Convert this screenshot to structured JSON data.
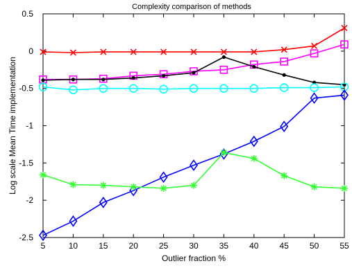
{
  "chart_data": {
    "type": "line",
    "title": "Complexity comparison of methods",
    "xlabel": "Outlier fraction %",
    "ylabel": "Log scale Mean Time implementation",
    "xlim": [
      5,
      55
    ],
    "ylim": [
      -2.5,
      0.5
    ],
    "x_ticks": [
      "5",
      "10",
      "15",
      "20",
      "25",
      "30",
      "35",
      "40",
      "45",
      "50",
      "55"
    ],
    "y_ticks": [
      "0.5",
      "0",
      "-0.5",
      "-1",
      "-1.5",
      "-2",
      "-2.5"
    ],
    "grid": false,
    "legend": "none",
    "x": [
      5,
      10,
      15,
      20,
      25,
      30,
      35,
      40,
      45,
      50,
      55
    ],
    "series": [
      {
        "color": "#ff0000",
        "marker": "x-icon",
        "values": [
          -0.01,
          -0.02,
          -0.01,
          -0.01,
          -0.01,
          -0.01,
          -0.01,
          -0.01,
          0.02,
          0.07,
          0.31
        ]
      },
      {
        "color": "#ff00ff",
        "marker": "square-icon",
        "values": [
          -0.38,
          -0.38,
          -0.37,
          -0.33,
          -0.31,
          -0.27,
          -0.25,
          -0.18,
          -0.14,
          -0.03,
          0.09
        ]
      },
      {
        "color": "#000000",
        "marker": "dot-icon",
        "values": [
          -0.39,
          -0.38,
          -0.38,
          -0.36,
          -0.33,
          -0.29,
          -0.08,
          -0.21,
          -0.32,
          -0.42,
          -0.45
        ]
      },
      {
        "color": "#00ffff",
        "marker": "circle-icon",
        "values": [
          -0.48,
          -0.52,
          -0.5,
          -0.5,
          -0.51,
          -0.5,
          -0.5,
          -0.5,
          -0.49,
          -0.49,
          -0.48
        ]
      },
      {
        "color": "#0000ff",
        "marker": "diamond-icon",
        "values": [
          -2.47,
          -2.28,
          -2.03,
          -1.87,
          -1.69,
          -1.53,
          -1.38,
          -1.21,
          -1.01,
          -0.63,
          -0.59
        ]
      },
      {
        "color": "#33ff33",
        "marker": "asterisk-icon",
        "values": [
          -1.66,
          -1.79,
          -1.8,
          -1.82,
          -1.84,
          -1.8,
          -1.36,
          -1.44,
          -1.67,
          -1.82,
          -1.84
        ]
      }
    ]
  }
}
